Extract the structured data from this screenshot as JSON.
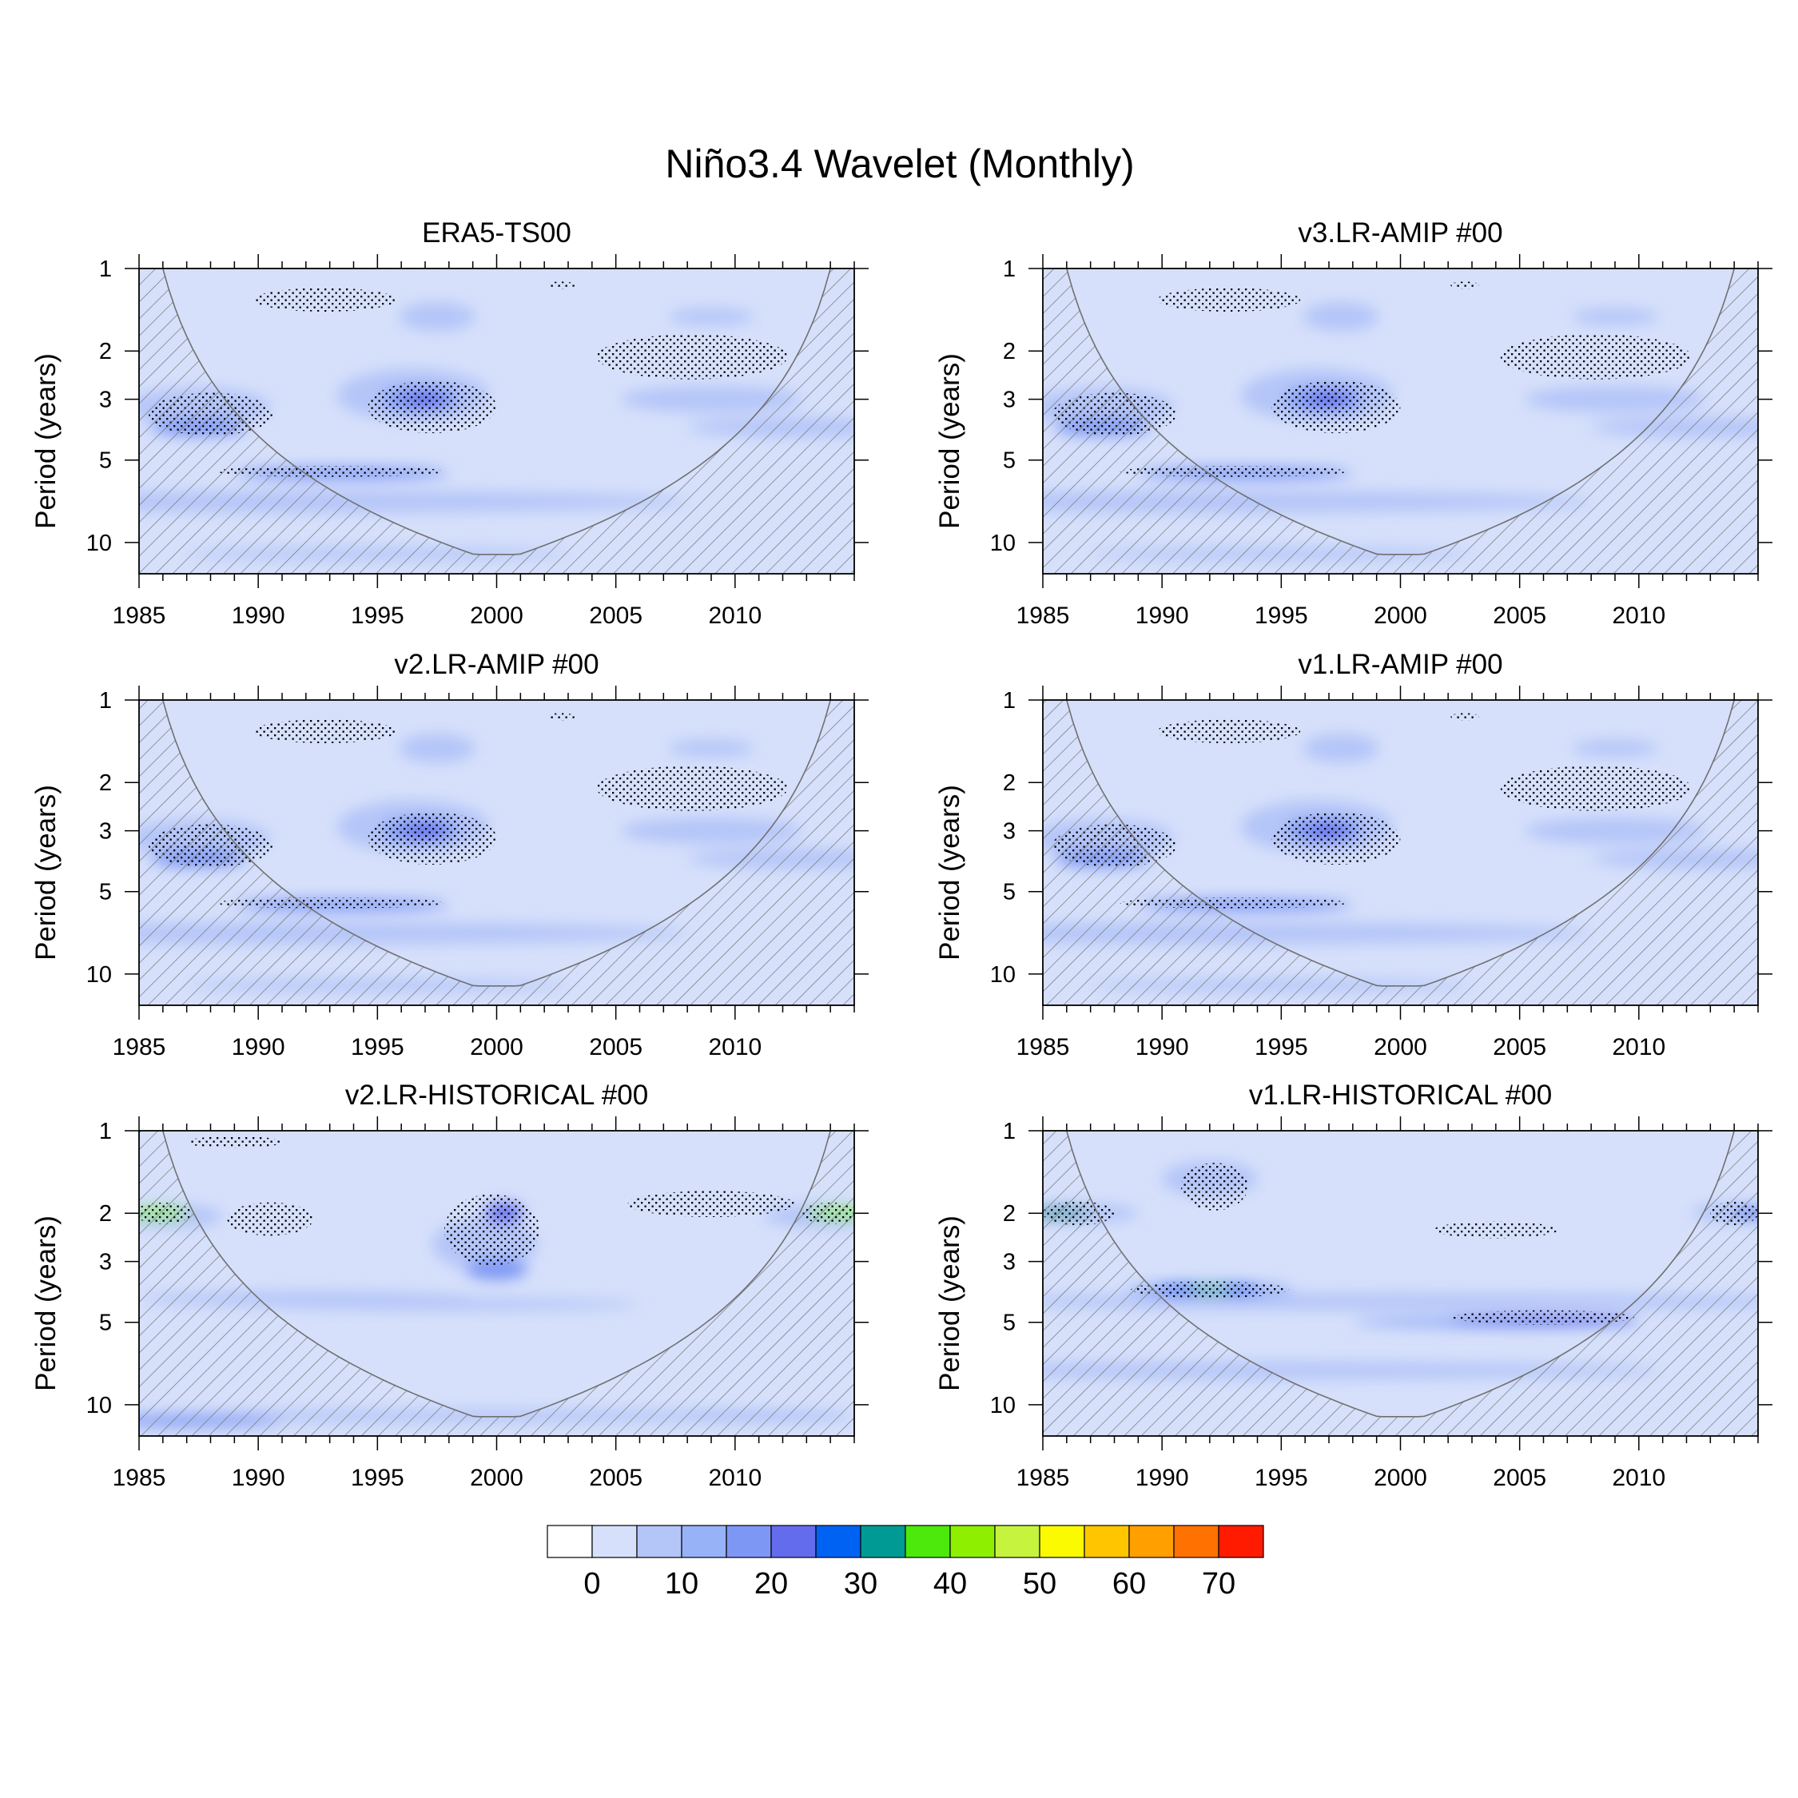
{
  "figure_title": "Niño3.4 Wavelet (Monthly)",
  "colors": {
    "levels": [
      "#ffffff",
      "#d6e0fb",
      "#b4c5f8",
      "#98b2f7",
      "#7d97f4",
      "#636cec",
      "#0062f2",
      "#009a95",
      "#4de80c",
      "#8fef00",
      "#c6f43e",
      "#fbfa00",
      "#ffc600",
      "#ff9f00",
      "#ff7100",
      "#ff1b00"
    ],
    "hatch": "#707070",
    "stipple": "#000000",
    "frame": "#000000"
  },
  "chart_data": [
    {
      "type": "heatmap",
      "title": "ERA5-TS00",
      "xlabel": "",
      "ylabel": "Period (years)",
      "xlim": [
        1985,
        2015
      ],
      "ylim": [
        1,
        13
      ],
      "yscale": "log",
      "xticks": [
        1985,
        1990,
        1995,
        2000,
        2005,
        2010
      ],
      "yticks": [
        1,
        2,
        3,
        5,
        10
      ],
      "background_level": 1,
      "blobs": [
        {
          "x": 1993,
          "p": 7.1,
          "sx": 15,
          "sy": 0.09,
          "v": 2
        },
        {
          "x": 1987.5,
          "p": 3.2,
          "sx": 3.0,
          "sy": 0.16,
          "v": 2
        },
        {
          "x": 1996.5,
          "p": 2.9,
          "sx": 3.2,
          "sy": 0.22,
          "v": 2
        },
        {
          "x": 2009,
          "p": 3.0,
          "sx": 3.8,
          "sy": 0.11,
          "v": 2
        },
        {
          "x": 2012.5,
          "p": 3.8,
          "sx": 4.5,
          "sy": 0.08,
          "v": 2
        },
        {
          "x": 1997.5,
          "p": 1.5,
          "sx": 1.6,
          "sy": 0.12,
          "v": 2
        },
        {
          "x": 2009,
          "p": 1.5,
          "sx": 1.8,
          "sy": 0.07,
          "v": 2
        },
        {
          "x": 1995,
          "p": 11,
          "sx": 8,
          "sy": 0.05,
          "v": 2
        },
        {
          "x": 1987.5,
          "p": 3.8,
          "sx": 2.0,
          "sy": 0.07,
          "v": 4
        },
        {
          "x": 1996.8,
          "p": 3.0,
          "sx": 1.6,
          "sy": 0.1,
          "v": 4
        },
        {
          "x": 1993.5,
          "p": 5.6,
          "sx": 4.5,
          "sy": 0.05,
          "v": 4
        },
        {
          "x": 1997,
          "p": 3.0,
          "sx": 0.8,
          "sy": 0.06,
          "v": 5
        },
        {
          "x": 1993.5,
          "p": 4.2,
          "sx": 1.8,
          "sy": 0.035,
          "v": 1
        }
      ],
      "stipple_regions": [
        {
          "x": 1992.8,
          "p": 1.3,
          "sx": 3.0,
          "sy": 0.1
        },
        {
          "x": 1997.3,
          "p": 3.2,
          "sx": 2.7,
          "sy": 0.22
        },
        {
          "x": 1988.0,
          "p": 3.4,
          "sx": 2.6,
          "sy": 0.18
        },
        {
          "x": 2008.2,
          "p": 2.1,
          "sx": 4.0,
          "sy": 0.19
        },
        {
          "x": 1993.0,
          "p": 5.5,
          "sx": 4.8,
          "sy": 0.045
        },
        {
          "x": 2002.7,
          "p": 1.15,
          "sx": 0.6,
          "sy": 0.03
        }
      ]
    },
    {
      "type": "heatmap",
      "title": "v3.LR-AMIP  #00",
      "xlabel": "",
      "ylabel": "Period (years)",
      "xlim": [
        1985,
        2015
      ],
      "ylim": [
        1,
        13
      ],
      "yscale": "log",
      "xticks": [
        1985,
        1990,
        1995,
        2000,
        2005,
        2010
      ],
      "yticks": [
        1,
        2,
        3,
        5,
        10
      ],
      "background_level": 1,
      "blobs": [
        {
          "x": 1993,
          "p": 7.1,
          "sx": 15,
          "sy": 0.09,
          "v": 2
        },
        {
          "x": 1987.5,
          "p": 3.2,
          "sx": 3.0,
          "sy": 0.16,
          "v": 2
        },
        {
          "x": 1996.5,
          "p": 2.9,
          "sx": 3.2,
          "sy": 0.22,
          "v": 2
        },
        {
          "x": 2009,
          "p": 3.0,
          "sx": 3.8,
          "sy": 0.11,
          "v": 2
        },
        {
          "x": 2012.5,
          "p": 3.8,
          "sx": 4.5,
          "sy": 0.08,
          "v": 2
        },
        {
          "x": 1997.5,
          "p": 1.5,
          "sx": 1.6,
          "sy": 0.12,
          "v": 2
        },
        {
          "x": 2009,
          "p": 1.5,
          "sx": 1.8,
          "sy": 0.07,
          "v": 2
        },
        {
          "x": 1995,
          "p": 11,
          "sx": 8,
          "sy": 0.05,
          "v": 2
        },
        {
          "x": 1987.5,
          "p": 3.8,
          "sx": 2.0,
          "sy": 0.07,
          "v": 4
        },
        {
          "x": 1996.8,
          "p": 3.0,
          "sx": 1.6,
          "sy": 0.1,
          "v": 4
        },
        {
          "x": 1993.5,
          "p": 5.6,
          "sx": 4.5,
          "sy": 0.05,
          "v": 4
        },
        {
          "x": 1997,
          "p": 3.0,
          "sx": 0.8,
          "sy": 0.06,
          "v": 5
        },
        {
          "x": 1993.5,
          "p": 4.2,
          "sx": 1.8,
          "sy": 0.035,
          "v": 1
        }
      ],
      "stipple_regions": [
        {
          "x": 1992.8,
          "p": 1.3,
          "sx": 3.0,
          "sy": 0.1
        },
        {
          "x": 1997.3,
          "p": 3.2,
          "sx": 2.7,
          "sy": 0.22
        },
        {
          "x": 1988.0,
          "p": 3.4,
          "sx": 2.6,
          "sy": 0.18
        },
        {
          "x": 2008.2,
          "p": 2.1,
          "sx": 4.0,
          "sy": 0.19
        },
        {
          "x": 1993.0,
          "p": 5.5,
          "sx": 4.8,
          "sy": 0.045
        },
        {
          "x": 2002.7,
          "p": 1.15,
          "sx": 0.6,
          "sy": 0.03
        }
      ]
    },
    {
      "type": "heatmap",
      "title": "v2.LR-AMIP  #00",
      "xlabel": "",
      "ylabel": "Period (years)",
      "xlim": [
        1985,
        2015
      ],
      "ylim": [
        1,
        13
      ],
      "yscale": "log",
      "xticks": [
        1985,
        1990,
        1995,
        2000,
        2005,
        2010
      ],
      "yticks": [
        1,
        2,
        3,
        5,
        10
      ],
      "background_level": 1,
      "blobs": [
        {
          "x": 1993,
          "p": 7.1,
          "sx": 15,
          "sy": 0.09,
          "v": 2
        },
        {
          "x": 1987.5,
          "p": 3.2,
          "sx": 3.0,
          "sy": 0.16,
          "v": 2
        },
        {
          "x": 1996.5,
          "p": 2.9,
          "sx": 3.2,
          "sy": 0.22,
          "v": 2
        },
        {
          "x": 2009,
          "p": 3.0,
          "sx": 3.8,
          "sy": 0.11,
          "v": 2
        },
        {
          "x": 2012.5,
          "p": 3.8,
          "sx": 4.5,
          "sy": 0.08,
          "v": 2
        },
        {
          "x": 1997.5,
          "p": 1.5,
          "sx": 1.6,
          "sy": 0.12,
          "v": 2
        },
        {
          "x": 2009,
          "p": 1.5,
          "sx": 1.8,
          "sy": 0.07,
          "v": 2
        },
        {
          "x": 1995,
          "p": 11,
          "sx": 8,
          "sy": 0.05,
          "v": 2
        },
        {
          "x": 1987.5,
          "p": 3.8,
          "sx": 2.0,
          "sy": 0.07,
          "v": 4
        },
        {
          "x": 1996.8,
          "p": 3.0,
          "sx": 1.6,
          "sy": 0.1,
          "v": 4
        },
        {
          "x": 1993.5,
          "p": 5.6,
          "sx": 4.5,
          "sy": 0.05,
          "v": 4
        },
        {
          "x": 1997,
          "p": 3.0,
          "sx": 0.8,
          "sy": 0.06,
          "v": 5
        },
        {
          "x": 1993.5,
          "p": 4.2,
          "sx": 1.8,
          "sy": 0.035,
          "v": 1
        }
      ],
      "stipple_regions": [
        {
          "x": 1992.8,
          "p": 1.3,
          "sx": 3.0,
          "sy": 0.1
        },
        {
          "x": 1997.3,
          "p": 3.2,
          "sx": 2.7,
          "sy": 0.22
        },
        {
          "x": 1988.0,
          "p": 3.4,
          "sx": 2.6,
          "sy": 0.18
        },
        {
          "x": 2008.2,
          "p": 2.1,
          "sx": 4.0,
          "sy": 0.19
        },
        {
          "x": 1993.0,
          "p": 5.5,
          "sx": 4.8,
          "sy": 0.045
        },
        {
          "x": 2002.7,
          "p": 1.15,
          "sx": 0.6,
          "sy": 0.03
        }
      ]
    },
    {
      "type": "heatmap",
      "title": "v1.LR-AMIP  #00",
      "xlabel": "",
      "ylabel": "Period (years)",
      "xlim": [
        1985,
        2015
      ],
      "ylim": [
        1,
        13
      ],
      "yscale": "log",
      "xticks": [
        1985,
        1990,
        1995,
        2000,
        2005,
        2010
      ],
      "yticks": [
        1,
        2,
        3,
        5,
        10
      ],
      "background_level": 1,
      "blobs": [
        {
          "x": 1993,
          "p": 7.1,
          "sx": 15,
          "sy": 0.09,
          "v": 2
        },
        {
          "x": 1987.5,
          "p": 3.2,
          "sx": 3.0,
          "sy": 0.16,
          "v": 2
        },
        {
          "x": 1996.5,
          "p": 2.9,
          "sx": 3.2,
          "sy": 0.22,
          "v": 2
        },
        {
          "x": 2009,
          "p": 3.0,
          "sx": 3.8,
          "sy": 0.11,
          "v": 2
        },
        {
          "x": 2012.5,
          "p": 3.8,
          "sx": 4.5,
          "sy": 0.08,
          "v": 2
        },
        {
          "x": 1997.5,
          "p": 1.5,
          "sx": 1.6,
          "sy": 0.12,
          "v": 2
        },
        {
          "x": 2009,
          "p": 1.5,
          "sx": 1.8,
          "sy": 0.07,
          "v": 2
        },
        {
          "x": 1995,
          "p": 11,
          "sx": 8,
          "sy": 0.05,
          "v": 2
        },
        {
          "x": 1987.5,
          "p": 3.8,
          "sx": 2.0,
          "sy": 0.07,
          "v": 4
        },
        {
          "x": 1996.8,
          "p": 3.0,
          "sx": 1.6,
          "sy": 0.1,
          "v": 4
        },
        {
          "x": 1993.5,
          "p": 5.6,
          "sx": 4.5,
          "sy": 0.05,
          "v": 4
        },
        {
          "x": 1997,
          "p": 3.0,
          "sx": 0.8,
          "sy": 0.06,
          "v": 5
        },
        {
          "x": 1993.5,
          "p": 4.2,
          "sx": 1.8,
          "sy": 0.035,
          "v": 1
        }
      ],
      "stipple_regions": [
        {
          "x": 1992.8,
          "p": 1.3,
          "sx": 3.0,
          "sy": 0.1
        },
        {
          "x": 1997.3,
          "p": 3.2,
          "sx": 2.7,
          "sy": 0.22
        },
        {
          "x": 1988.0,
          "p": 3.4,
          "sx": 2.6,
          "sy": 0.18
        },
        {
          "x": 2008.2,
          "p": 2.1,
          "sx": 4.0,
          "sy": 0.19
        },
        {
          "x": 1993.0,
          "p": 5.5,
          "sx": 4.8,
          "sy": 0.045
        },
        {
          "x": 2002.7,
          "p": 1.15,
          "sx": 0.6,
          "sy": 0.03
        }
      ]
    },
    {
      "type": "heatmap",
      "title": "v2.LR-HISTORICAL  #00",
      "xlabel": "",
      "ylabel": "Period (years)",
      "xlim": [
        1985,
        2015
      ],
      "ylim": [
        1,
        13
      ],
      "yscale": "log",
      "xticks": [
        1985,
        1990,
        1995,
        2000,
        2005,
        2010
      ],
      "yticks": [
        1,
        2,
        3,
        5,
        10
      ],
      "background_level": 1,
      "blobs": [
        {
          "x": 1999.5,
          "p": 2.6,
          "sx": 2.2,
          "sy": 0.22,
          "v": 2
        },
        {
          "x": 1992,
          "p": 4.1,
          "sx": 7,
          "sy": 0.06,
          "v": 2
        },
        {
          "x": 1998,
          "p": 4.3,
          "sx": 8,
          "sy": 0.05,
          "v": 2
        },
        {
          "x": 1986.3,
          "p": 2.05,
          "sx": 2.2,
          "sy": 0.1,
          "v": 2
        },
        {
          "x": 2013.8,
          "p": 2.05,
          "sx": 2.6,
          "sy": 0.1,
          "v": 2
        },
        {
          "x": 1999,
          "p": 11,
          "sx": 16,
          "sy": 0.05,
          "v": 2
        },
        {
          "x": 1987,
          "p": 11.5,
          "sx": 4,
          "sy": 0.04,
          "v": 4
        },
        {
          "x": 2011.5,
          "p": 11,
          "sx": 3.5,
          "sy": 0.03,
          "v": 3
        },
        {
          "x": 2000.3,
          "p": 2.0,
          "sx": 0.8,
          "sy": 0.08,
          "v": 5
        },
        {
          "x": 2000,
          "p": 3.2,
          "sx": 1.3,
          "sy": 0.09,
          "v": 4
        },
        {
          "x": 1985.8,
          "p": 2.0,
          "sx": 1.3,
          "sy": 0.045,
          "v": 9
        },
        {
          "x": 2014.5,
          "p": 2.0,
          "sx": 1.5,
          "sy": 0.045,
          "v": 9
        }
      ],
      "stipple_regions": [
        {
          "x": 1999.8,
          "p": 2.3,
          "sx": 2.0,
          "sy": 0.3
        },
        {
          "x": 1990.5,
          "p": 2.1,
          "sx": 1.8,
          "sy": 0.14
        },
        {
          "x": 2009,
          "p": 1.85,
          "sx": 3.5,
          "sy": 0.11
        },
        {
          "x": 1989,
          "p": 1.1,
          "sx": 2,
          "sy": 0.05
        },
        {
          "x": 1986,
          "p": 2.0,
          "sx": 1.2,
          "sy": 0.09
        },
        {
          "x": 2014,
          "p": 2.0,
          "sx": 1.2,
          "sy": 0.09
        }
      ]
    },
    {
      "type": "heatmap",
      "title": "v1.LR-HISTORICAL  #00",
      "xlabel": "",
      "ylabel": "Period (years)",
      "xlim": [
        1985,
        2015
      ],
      "ylim": [
        1,
        13
      ],
      "yscale": "log",
      "xticks": [
        1985,
        1990,
        1995,
        2000,
        2005,
        2010
      ],
      "yticks": [
        1,
        2,
        3,
        5,
        10
      ],
      "background_level": 1,
      "blobs": [
        {
          "x": 2000,
          "p": 4.2,
          "sx": 18,
          "sy": 0.07,
          "v": 2
        },
        {
          "x": 1995,
          "p": 7.5,
          "sx": 16,
          "sy": 0.07,
          "v": 2
        },
        {
          "x": 1992,
          "p": 1.5,
          "sx": 2,
          "sy": 0.15,
          "v": 2
        },
        {
          "x": 1986.5,
          "p": 2.0,
          "sx": 2.5,
          "sy": 0.08,
          "v": 2
        },
        {
          "x": 2014,
          "p": 2.0,
          "sx": 1.8,
          "sy": 0.08,
          "v": 2
        },
        {
          "x": 2004,
          "p": 5.0,
          "sx": 6,
          "sy": 0.05,
          "v": 3
        },
        {
          "x": 1992,
          "p": 3.8,
          "sx": 3.5,
          "sy": 0.06,
          "v": 3
        },
        {
          "x": 1991.9,
          "p": 3.8,
          "sx": 2.2,
          "sy": 0.04,
          "v": 6
        },
        {
          "x": 2006,
          "p": 4.9,
          "sx": 4,
          "sy": 0.035,
          "v": 5
        },
        {
          "x": 1985.6,
          "p": 2.0,
          "sx": 1.4,
          "sy": 0.035,
          "v": 7
        },
        {
          "x": 2014.7,
          "p": 2.0,
          "sx": 0.8,
          "sy": 0.03,
          "v": 6
        },
        {
          "x": 1992,
          "p": 3.8,
          "sx": 0.9,
          "sy": 0.02,
          "v": 9
        }
      ],
      "stipple_regions": [
        {
          "x": 1992,
          "p": 3.8,
          "sx": 3.3,
          "sy": 0.07
        },
        {
          "x": 2006,
          "p": 4.8,
          "sx": 3.8,
          "sy": 0.06
        },
        {
          "x": 1992.2,
          "p": 1.6,
          "sx": 1.4,
          "sy": 0.2
        },
        {
          "x": 2004,
          "p": 2.3,
          "sx": 2.6,
          "sy": 0.07
        },
        {
          "x": 2014,
          "p": 2.0,
          "sx": 1.0,
          "sy": 0.1
        },
        {
          "x": 1986.5,
          "p": 2.0,
          "sx": 1.5,
          "sy": 0.1
        }
      ]
    }
  ],
  "colorbar": {
    "ticks": [
      "0",
      "10",
      "20",
      "30",
      "40",
      "50",
      "60",
      "70"
    ]
  }
}
